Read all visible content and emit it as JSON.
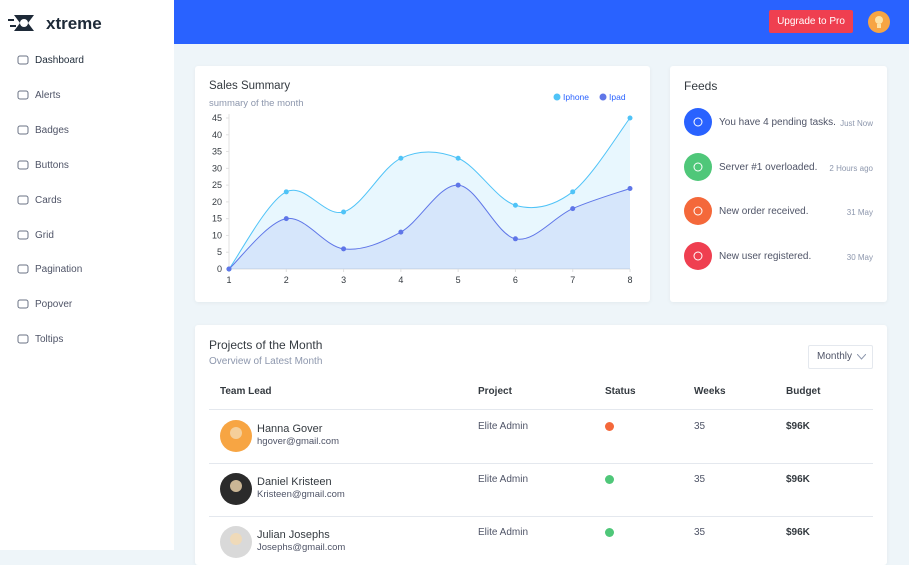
{
  "brand": "xtreme",
  "header": {
    "button": "Upgrade to Pro"
  },
  "sidebar": [
    "Dashboard",
    "Alerts",
    "Badges",
    "Buttons",
    "Cards",
    "Grid",
    "Pagination",
    "Popover",
    "Toltips"
  ],
  "sales": {
    "chart_data": {
      "type": "line",
      "title": "Sales Summary",
      "subtitle": "summary of the month",
      "x": [
        1,
        2,
        3,
        4,
        5,
        6,
        7,
        8
      ],
      "series": [
        {
          "name": "Iphone",
          "color": "#4fc3f7",
          "values": [
            0,
            23,
            17,
            33,
            33,
            19,
            23,
            45
          ]
        },
        {
          "name": "Ipad",
          "color": "#5f76e8",
          "values": [
            0,
            15,
            6,
            11,
            25,
            9,
            18,
            24
          ]
        }
      ],
      "xlim": [
        1,
        8
      ],
      "xticks": [
        1,
        2,
        3,
        4,
        5,
        6,
        7,
        8
      ],
      "ylim": [
        0,
        45
      ],
      "yticks": [
        0,
        5,
        10,
        15,
        20,
        25,
        30,
        35,
        40,
        45
      ],
      "legend": "top-right"
    }
  },
  "feeds": {
    "title": "Feeds",
    "items": [
      {
        "text": "You have 4 pending tasks.",
        "time": "Just Now",
        "color": "#2962ff"
      },
      {
        "text": "Server #1 overloaded.",
        "time": "2 Hours ago",
        "color": "#4fc779"
      },
      {
        "text": "New order received.",
        "time": "31 May",
        "color": "#f4683a"
      },
      {
        "text": "New user registered.",
        "time": "30 May",
        "color": "#ef3f50"
      }
    ]
  },
  "projects": {
    "title": "Projects of the Month",
    "subtitle": "Overview of Latest Month",
    "filter": "Monthly",
    "table": {
      "headers": [
        "Team Lead",
        "Project",
        "Status",
        "Weeks",
        "Budget"
      ],
      "rows": [
        {
          "name": "Hanna Gover",
          "email": "hgover@gmail.com",
          "project": "Elite Admin",
          "status": "#f4683a",
          "weeks": 35,
          "budget": "$96K",
          "avatar": "#f7a543"
        },
        {
          "name": "Daniel Kristeen",
          "email": "Kristeen@gmail.com",
          "project": "Elite Admin",
          "status": "#4fc779",
          "weeks": 35,
          "budget": "$96K",
          "avatar": "#2b2b2b"
        },
        {
          "name": "Julian Josephs",
          "email": "Josephs@gmail.com",
          "project": "Elite Admin",
          "status": "#4fc779",
          "weeks": 35,
          "budget": "$96K",
          "avatar": "#d9d9d9"
        }
      ]
    }
  }
}
